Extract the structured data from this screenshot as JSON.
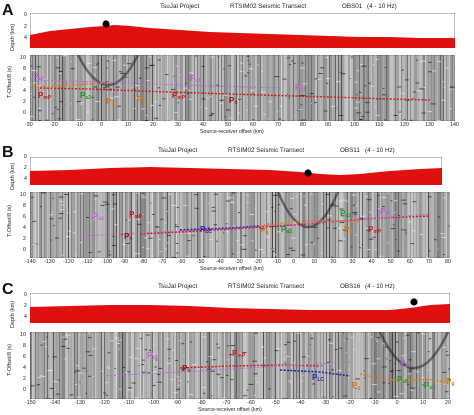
{
  "panels": [
    {
      "letter": "A",
      "title_project": "TsuJal Project",
      "title_transect": "RTSIM02 Seismic Transect",
      "title_station": "OBS01",
      "title_band": "(4 - 10 Hz)",
      "depth_label": "Depth",
      "depth_unit": "(km)",
      "depth_ticks": [
        "0",
        "2",
        "4"
      ],
      "record_label": "T-Offset/8 (s)",
      "record_ticks": [
        "10",
        "8",
        "6",
        "4",
        "2",
        "0"
      ],
      "x_ticks": [
        "-30",
        "-20",
        "-10",
        "0",
        "10",
        "20",
        "30",
        "40",
        "50",
        "60",
        "70",
        "80",
        "90",
        "100",
        "110",
        "120",
        "130",
        "140"
      ],
      "x_label": "Source-receiver offset (km)",
      "phases": [
        {
          "text": "P",
          "sub": "s1",
          "color": "#c060d8"
        },
        {
          "text": "P",
          "sub": "mP",
          "color": "#d01818"
        },
        {
          "text": "P",
          "sub": "s2",
          "color": "#1a9a1a"
        },
        {
          "text": "P",
          "sub": "g",
          "color": "#e07810"
        },
        {
          "text": "P",
          "sub": "g",
          "color": "#e07810"
        },
        {
          "text": "P",
          "sub": "mP",
          "color": "#d01818"
        },
        {
          "text": "P",
          "sub": "n",
          "color": "#8a1010"
        },
        {
          "text": "P",
          "sub": "s1",
          "color": "#c060d8"
        },
        {
          "text": "P",
          "sub": "s1",
          "color": "#c060d8"
        }
      ]
    },
    {
      "letter": "B",
      "title_project": "TsuJal Project",
      "title_transect": "RTSIM02 Seismic Transect",
      "title_station": "OBS11",
      "title_band": "(4 - 10 Hz)",
      "depth_label": "Depth",
      "depth_unit": "(km)",
      "depth_ticks": [
        "0",
        "2",
        "4"
      ],
      "record_label": "T-Offset/8 (s)",
      "record_ticks": [
        "10",
        "8",
        "6",
        "4",
        "2",
        "0"
      ],
      "x_ticks": [
        "-140",
        "-130",
        "-120",
        "-110",
        "-100",
        "-90",
        "-80",
        "-70",
        "-60",
        "-50",
        "-40",
        "-30",
        "-20",
        "-10",
        "0",
        "10",
        "20",
        "30",
        "40",
        "50",
        "60",
        "70",
        "80"
      ],
      "x_label": "Source-receiver offset (km)",
      "phases": [
        {
          "text": "P",
          "sub": "s1",
          "color": "#c060d8"
        },
        {
          "text": "P",
          "sub": "mP",
          "color": "#d01818"
        },
        {
          "text": "P",
          "sub": "n",
          "color": "#8a1010"
        },
        {
          "text": "P",
          "sub": "LC",
          "color": "#1a2ab0"
        },
        {
          "text": "P",
          "sub": "g",
          "color": "#e07810"
        },
        {
          "text": "P",
          "sub": "s2",
          "color": "#1a9a1a"
        },
        {
          "text": "P",
          "sub": "s2",
          "color": "#1a9a1a"
        },
        {
          "text": "P",
          "sub": "g",
          "color": "#e07810"
        },
        {
          "text": "P",
          "sub": "mP",
          "color": "#d01818"
        },
        {
          "text": "P",
          "sub": "s1",
          "color": "#c060d8"
        }
      ]
    },
    {
      "letter": "C",
      "title_project": "TsuJal Project",
      "title_transect": "RTSIM02 Seismic Transect",
      "title_station": "OBS16",
      "title_band": "(4 - 10 Hz)",
      "depth_label": "Depth",
      "depth_unit": "(km)",
      "depth_ticks": [
        "0",
        "2",
        "4"
      ],
      "record_label": "T-Offset/8 (s)",
      "record_ticks": [
        "10",
        "8",
        "6",
        "4",
        "2",
        "0"
      ],
      "x_ticks": [
        "-150",
        "-140",
        "-130",
        "-120",
        "-110",
        "-100",
        "-90",
        "-80",
        "-70",
        "-60",
        "-50",
        "-40",
        "-30",
        "-20",
        "-10",
        "0",
        "10",
        "20"
      ],
      "x_label": "Source-receiver offset (km)",
      "phases": [
        {
          "text": "P",
          "sub": "s1",
          "color": "#c060d8"
        },
        {
          "text": "P",
          "sub": "mP",
          "color": "#d01818"
        },
        {
          "text": "P",
          "sub": "n",
          "color": "#8a1010"
        },
        {
          "text": "P",
          "sub": "LC",
          "color": "#1a2ab0"
        },
        {
          "text": "P",
          "sub": "g",
          "color": "#e07810"
        },
        {
          "text": "P",
          "sub": "s1",
          "color": "#c060d8"
        },
        {
          "text": "P",
          "sub": "s2",
          "color": "#1a9a1a"
        },
        {
          "text": "P",
          "sub": "s2",
          "color": "#1a9a1a"
        },
        {
          "text": "P",
          "sub": "g",
          "color": "#e07810"
        }
      ]
    }
  ],
  "colors": {
    "bathymetry": "#e01010",
    "obs_marker": "#000000",
    "seismic_bg": "#b8b8b8"
  }
}
